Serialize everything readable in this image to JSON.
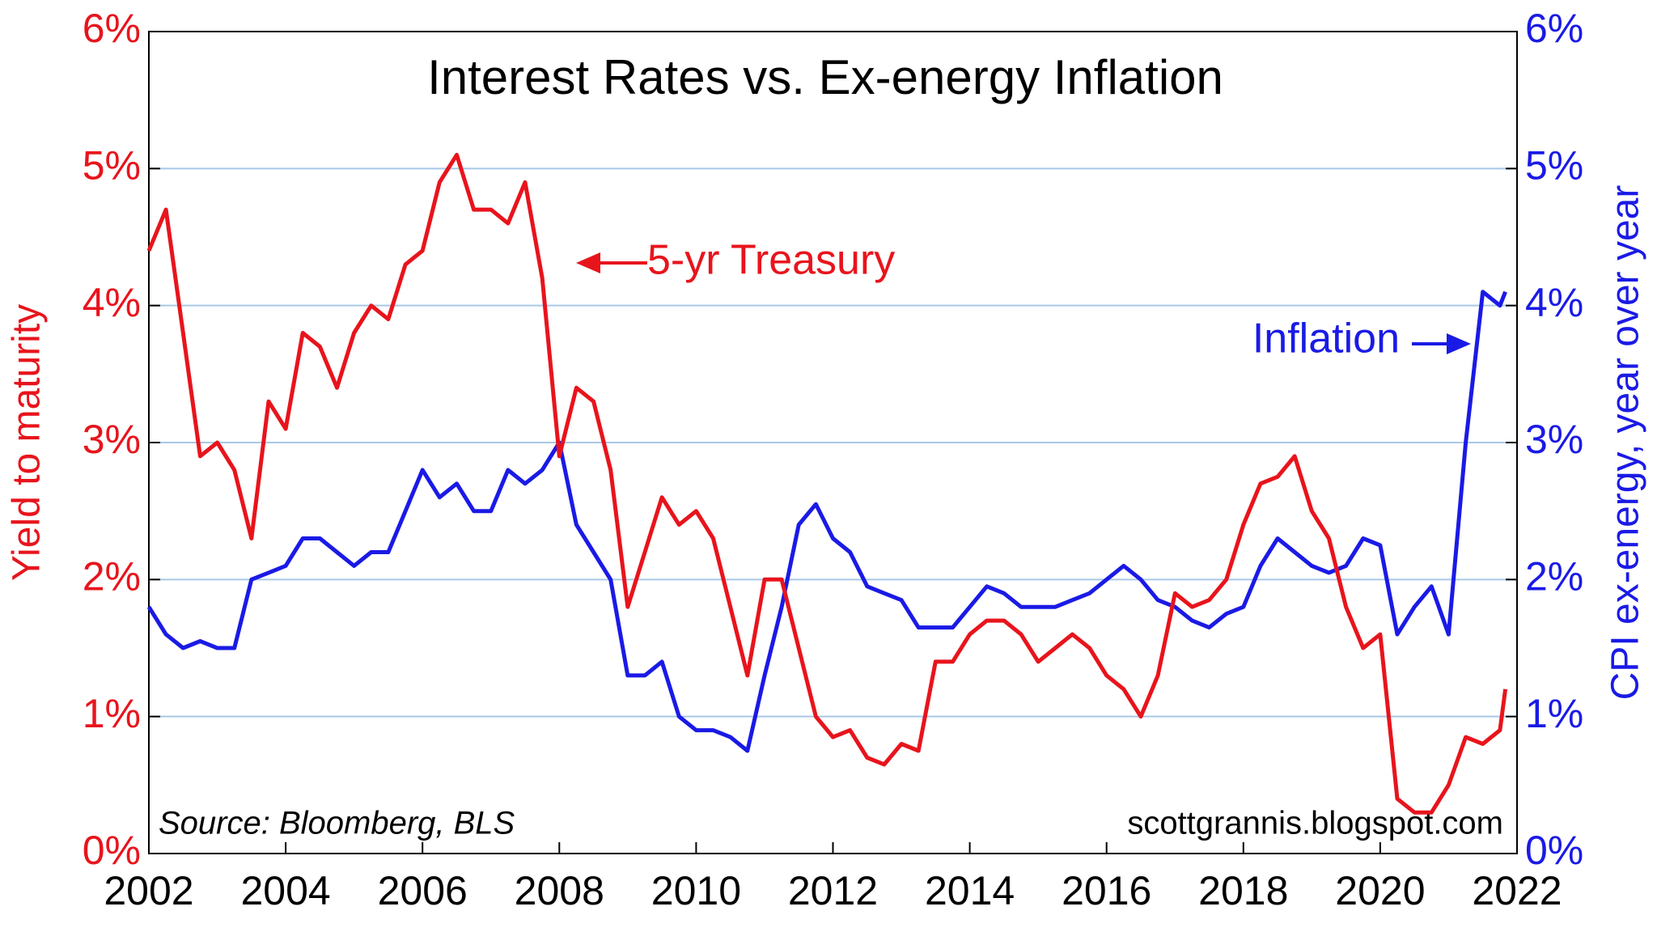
{
  "chart_data": {
    "type": "line",
    "title": "Interest Rates vs. Ex-energy Inflation",
    "y_label": "Yield to maturity",
    "y2_label": "CPI ex-energy, year over year",
    "annotations": {
      "treasury": "5-yr Treasury",
      "inflation": "Inflation",
      "source": "Source: Bloomberg, BLS",
      "site": "scottgrannis.blogspot.com"
    },
    "x": [
      2002,
      2002.25,
      2002.5,
      2002.75,
      2003,
      2003.25,
      2003.5,
      2003.75,
      2004,
      2004.25,
      2004.5,
      2004.75,
      2005,
      2005.25,
      2005.5,
      2005.75,
      2006,
      2006.25,
      2006.5,
      2006.75,
      2007,
      2007.25,
      2007.5,
      2007.75,
      2008,
      2008.25,
      2008.5,
      2008.75,
      2009,
      2009.25,
      2009.5,
      2009.75,
      2010,
      2010.25,
      2010.5,
      2010.75,
      2011,
      2011.25,
      2011.5,
      2011.75,
      2012,
      2012.25,
      2012.5,
      2012.75,
      2013,
      2013.25,
      2013.5,
      2013.75,
      2014,
      2014.25,
      2014.5,
      2014.75,
      2015,
      2015.25,
      2015.5,
      2015.75,
      2016,
      2016.25,
      2016.5,
      2016.75,
      2017,
      2017.25,
      2017.5,
      2017.75,
      2018,
      2018.25,
      2018.5,
      2018.75,
      2019,
      2019.25,
      2019.5,
      2019.75,
      2020,
      2020.25,
      2020.5,
      2020.75,
      2021,
      2021.25,
      2021.5,
      2021.75,
      2021.83
    ],
    "series": [
      {
        "name": "5-yr Treasury",
        "color": "#e8141c",
        "axis": "y",
        "values": [
          4.4,
          4.7,
          3.8,
          2.9,
          3.0,
          2.8,
          2.3,
          3.3,
          3.1,
          3.8,
          3.7,
          3.4,
          3.8,
          4.0,
          3.9,
          4.3,
          4.4,
          4.9,
          5.1,
          4.7,
          4.7,
          4.6,
          4.9,
          4.2,
          2.9,
          3.4,
          3.3,
          2.8,
          1.8,
          2.2,
          2.6,
          2.4,
          2.5,
          2.3,
          1.8,
          1.3,
          2.0,
          2.0,
          1.5,
          1.0,
          0.85,
          0.9,
          0.7,
          0.65,
          0.8,
          0.75,
          1.4,
          1.4,
          1.6,
          1.7,
          1.7,
          1.6,
          1.4,
          1.5,
          1.6,
          1.5,
          1.3,
          1.2,
          1.0,
          1.3,
          1.9,
          1.8,
          1.85,
          2.0,
          2.4,
          2.7,
          2.75,
          2.9,
          2.5,
          2.3,
          1.8,
          1.5,
          1.6,
          0.4,
          0.3,
          0.3,
          0.5,
          0.85,
          0.8,
          0.9,
          1.2
        ]
      },
      {
        "name": "Inflation",
        "color": "#1a1ae6",
        "axis": "y2",
        "values": [
          1.8,
          1.6,
          1.5,
          1.55,
          1.5,
          1.5,
          2.0,
          2.05,
          2.1,
          2.3,
          2.3,
          2.2,
          2.1,
          2.2,
          2.2,
          2.5,
          2.8,
          2.6,
          2.7,
          2.5,
          2.5,
          2.8,
          2.7,
          2.8,
          3.0,
          2.4,
          2.2,
          2.0,
          1.3,
          1.3,
          1.4,
          1.0,
          0.9,
          0.9,
          0.85,
          0.75,
          1.3,
          1.8,
          2.4,
          2.55,
          2.3,
          2.2,
          1.95,
          1.9,
          1.85,
          1.65,
          1.65,
          1.65,
          1.8,
          1.95,
          1.9,
          1.8,
          1.8,
          1.8,
          1.85,
          1.9,
          2.0,
          2.1,
          2.0,
          1.85,
          1.8,
          1.7,
          1.65,
          1.75,
          1.8,
          2.1,
          2.3,
          2.2,
          2.1,
          2.05,
          2.1,
          2.3,
          2.25,
          1.6,
          1.8,
          1.95,
          1.6,
          3.0,
          4.1,
          4.0,
          4.1
        ]
      }
    ],
    "xlim": [
      2002,
      2022
    ],
    "xticks": [
      2002,
      2004,
      2006,
      2008,
      2010,
      2012,
      2014,
      2016,
      2018,
      2020,
      2022
    ],
    "ylim": [
      0,
      6
    ],
    "yticks": [
      {
        "value": 0,
        "label": "0%"
      },
      {
        "value": 1,
        "label": "1%"
      },
      {
        "value": 2,
        "label": "2%"
      },
      {
        "value": 3,
        "label": "3%"
      },
      {
        "value": 4,
        "label": "4%"
      },
      {
        "value": 5,
        "label": "5%"
      },
      {
        "value": 6,
        "label": "6%"
      }
    ],
    "y2lim": [
      0,
      6
    ],
    "y2ticks": [
      {
        "value": 0,
        "label": "0%"
      },
      {
        "value": 1,
        "label": "1%"
      },
      {
        "value": 2,
        "label": "2%"
      },
      {
        "value": 3,
        "label": "3%"
      },
      {
        "value": 4,
        "label": "4%"
      },
      {
        "value": 5,
        "label": "5%"
      },
      {
        "value": 6,
        "label": "6%"
      }
    ],
    "grid": true
  }
}
